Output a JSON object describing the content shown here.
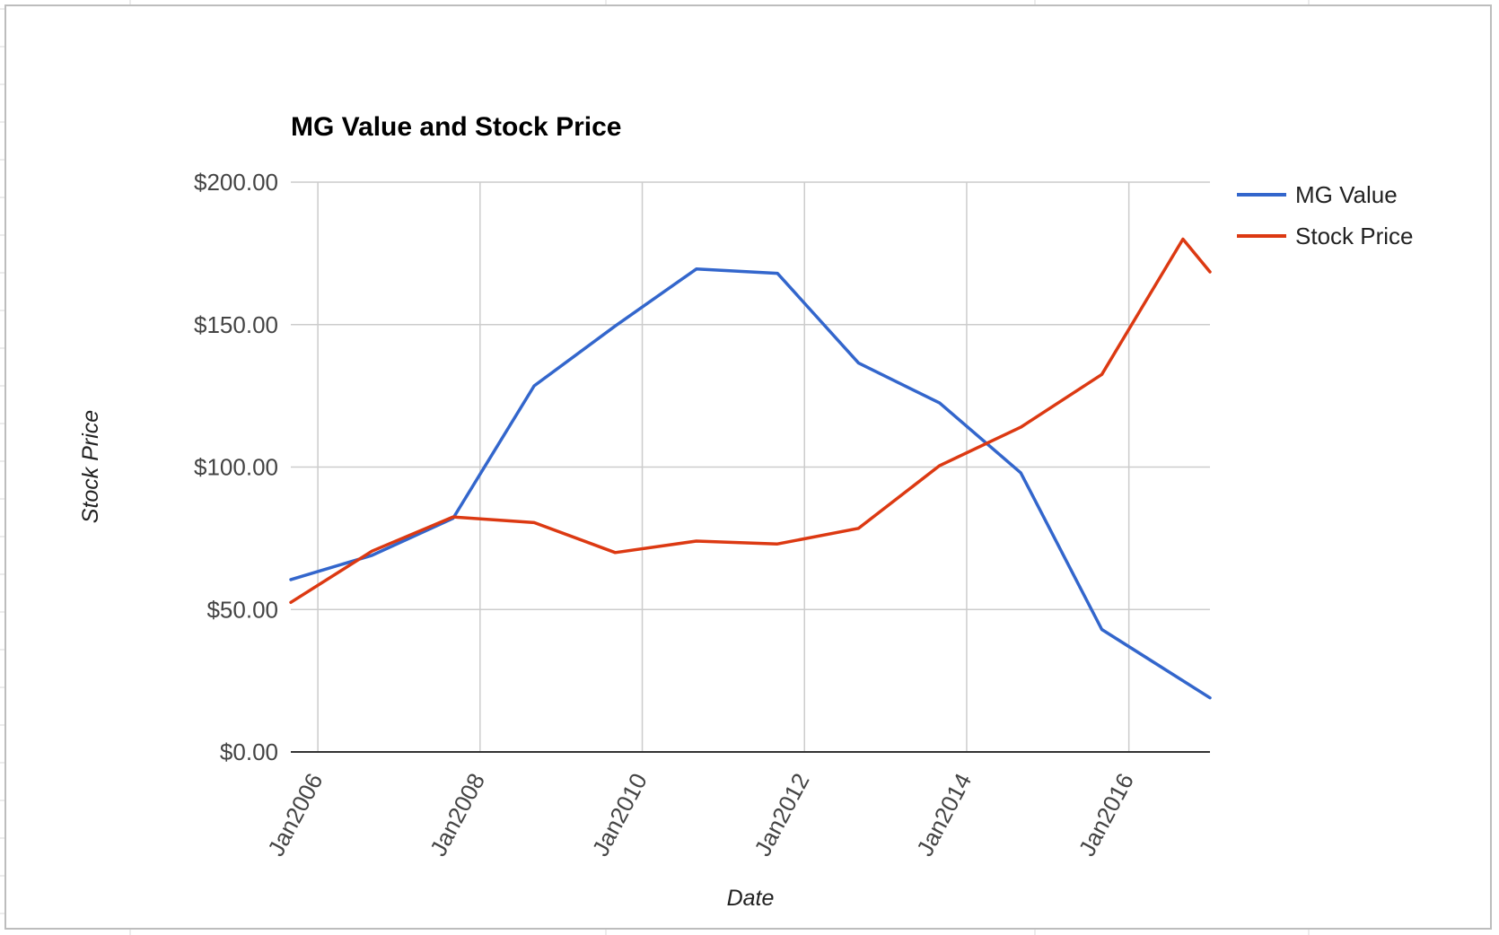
{
  "chart_data": {
    "type": "line",
    "title": "MG Value and Stock Price",
    "xlabel": "Date",
    "ylabel": "Stock Price",
    "x_tick_labels": [
      "Jan2006",
      "Jan2008",
      "Jan2010",
      "Jan2012",
      "Jan2014",
      "Jan2016"
    ],
    "x_ticks": [
      "2006-01",
      "2008-01",
      "2010-01",
      "2012-01",
      "2014-01",
      "2016-01"
    ],
    "xlim": [
      "2005-09",
      "2017-01"
    ],
    "y_tick_labels": [
      "$0.00",
      "$50.00",
      "$100.00",
      "$150.00",
      "$200.00"
    ],
    "y_ticks": [
      0,
      50,
      100,
      150,
      200
    ],
    "ylim": [
      0,
      200
    ],
    "grid": true,
    "legend_position": "right",
    "x": [
      "2005-09",
      "2006-09",
      "2007-09",
      "2008-09",
      "2009-09",
      "2010-09",
      "2011-09",
      "2012-09",
      "2013-09",
      "2014-09",
      "2015-09",
      "2016-09",
      "2017-01"
    ],
    "series": [
      {
        "name": "MG Value",
        "color": "#3366cc",
        "values": [
          60.5,
          69,
          82,
          128.5,
          149.5,
          169.5,
          168,
          136.5,
          122.5,
          98,
          43,
          null,
          19
        ]
      },
      {
        "name": "Stock Price",
        "color": "#dc3912",
        "values": [
          52.5,
          70.5,
          82.5,
          80.5,
          70,
          74,
          73,
          78.5,
          100.5,
          114,
          132.5,
          180,
          168.5
        ]
      }
    ]
  }
}
